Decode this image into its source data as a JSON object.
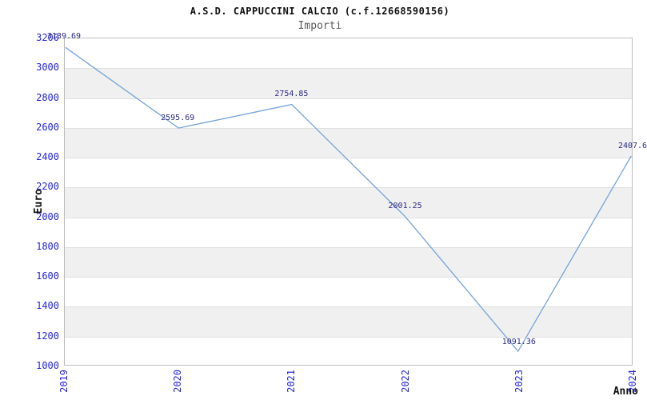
{
  "chart_data": {
    "type": "line",
    "title": "A.S.D. CAPPUCCINI CALCIO (c.f.12668590156)",
    "subtitle": "Importi",
    "xlabel": "Anno",
    "ylabel": "Euro",
    "x": [
      "2019",
      "2020",
      "2021",
      "2022",
      "2023",
      "2024"
    ],
    "values": [
      3139.69,
      2595.69,
      2754.85,
      2001.25,
      1091.36,
      2407.6
    ],
    "point_labels": [
      "3139.69",
      "2595.69",
      "2754.85",
      "2001.25",
      "1091.36",
      "2407.6"
    ],
    "ylim": [
      1000,
      3200
    ],
    "ytick_step": 200,
    "grid": true,
    "banded_rows": true,
    "legend": "none",
    "colors": {
      "line": "#74a2d9",
      "axis_tick_labels": "#2424dd",
      "point_labels": "#2b2b85",
      "axis_titles": "#111111",
      "title": "#111111",
      "subtitle": "#5a5a5a",
      "band": "#f0f0f0",
      "gridline": "#e0e0e0",
      "plot_border": "#bbbbbb",
      "background": "#ffffff"
    }
  }
}
